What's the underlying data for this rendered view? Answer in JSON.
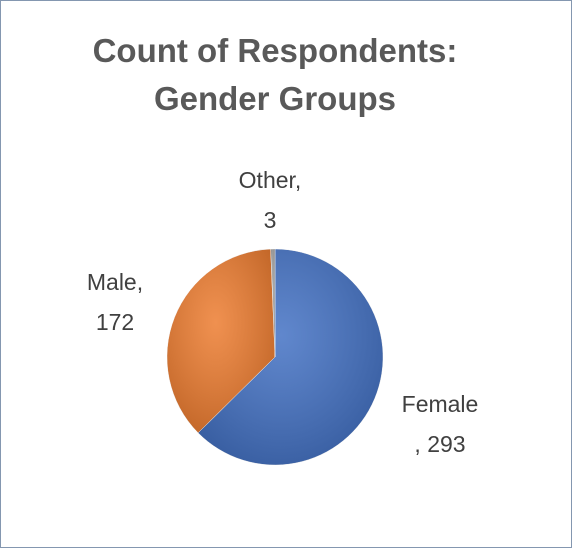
{
  "chart_data": {
    "type": "pie",
    "title": "Count of Respondents: Gender Groups",
    "categories": [
      "Female",
      "Male",
      "Other"
    ],
    "values": [
      293,
      172,
      3
    ],
    "value_labels": [
      "Female\n, 293",
      "Male,\n172",
      "Other,\n3"
    ],
    "colors": [
      "#4472c4",
      "#ed7d31",
      "#a5a5a5"
    ]
  }
}
